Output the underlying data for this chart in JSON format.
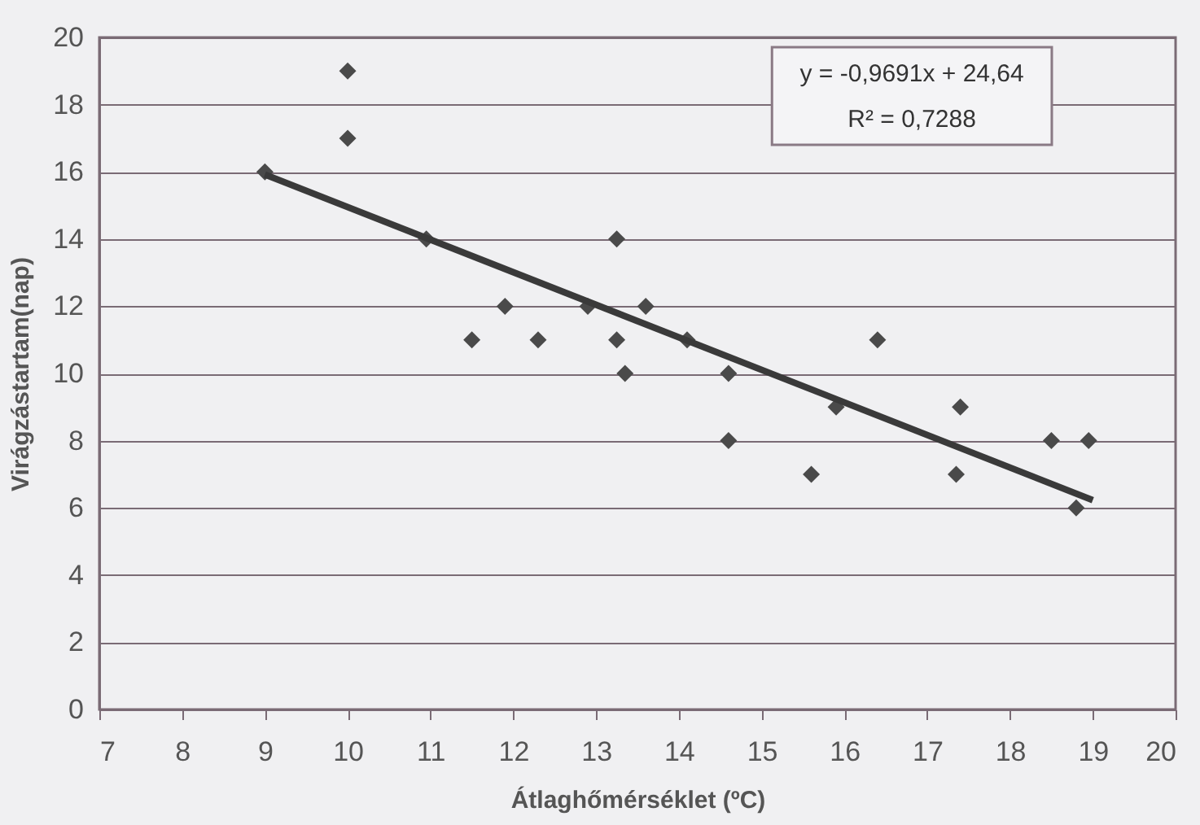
{
  "chart_data": {
    "type": "scatter",
    "xlabel": "Átlaghőmérséklet (ºC)",
    "ylabel": "Virágzástartam(nap)",
    "xlim": [
      7,
      20
    ],
    "xticks": [
      7,
      8,
      9,
      10,
      11,
      12,
      13,
      14,
      15,
      16,
      17,
      18,
      19,
      20
    ],
    "ylim": [
      0,
      20
    ],
    "yticks": [
      0,
      2,
      4,
      6,
      8,
      10,
      12,
      14,
      16,
      18,
      20
    ],
    "grid": "y",
    "marker": "diamond",
    "annotations": [
      "y = -0,9691x + 24,64",
      "R² = 0,7288"
    ],
    "series": [
      {
        "color": "#4a4a4a",
        "x": [
          9,
          10,
          10,
          10.95,
          11.5,
          11.9,
          12.3,
          12.9,
          13.25,
          13.25,
          13.35,
          13.6,
          14.1,
          14.6,
          14.6,
          15.6,
          15.9,
          16.4,
          17.35,
          17.4,
          18.5,
          18.95,
          18.8
        ],
        "values": [
          16,
          19,
          17,
          14,
          11,
          12,
          11,
          12,
          14,
          11,
          10,
          12,
          11,
          10,
          8,
          7,
          9,
          11,
          7,
          9,
          8,
          8,
          6
        ]
      },
      {
        "type": "line",
        "color": "#3a3a3a",
        "marker": "none",
        "x": [
          9,
          19
        ],
        "values": [
          15.92,
          6.23
        ]
      }
    ]
  }
}
